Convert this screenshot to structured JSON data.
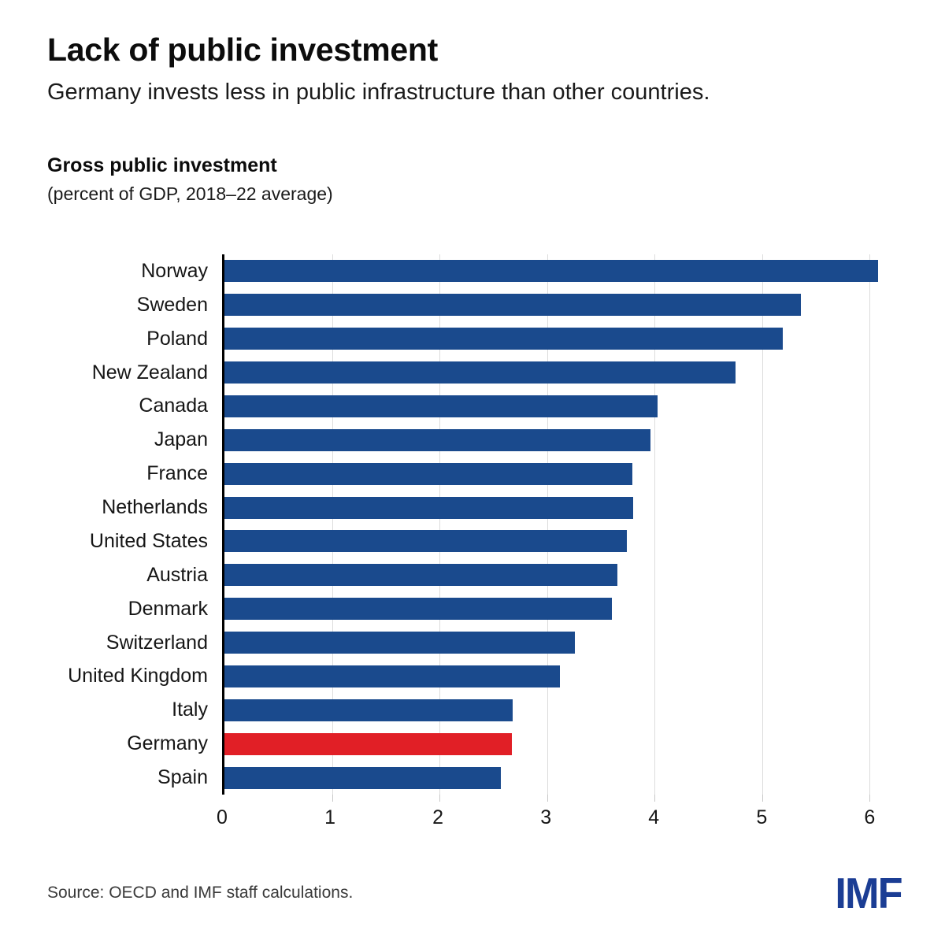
{
  "header": {
    "title": "Lack of public investment",
    "subtitle": "Germany invests less in public infrastructure than other countries."
  },
  "chart": {
    "heading": "Gross public investment",
    "subheading": "(percent of GDP, 2018–22 average)"
  },
  "chart_data": {
    "type": "bar",
    "orientation": "horizontal",
    "title": "Gross public investment",
    "subtitle": "(percent of GDP, 2018–22 average)",
    "categories": [
      "Norway",
      "Sweden",
      "Poland",
      "New Zealand",
      "Canada",
      "Japan",
      "France",
      "Netherlands",
      "United States",
      "Austria",
      "Denmark",
      "Switzerland",
      "United Kingdom",
      "Italy",
      "Germany",
      "Spain"
    ],
    "values": [
      6.08,
      5.36,
      5.19,
      4.75,
      4.03,
      3.96,
      3.79,
      3.8,
      3.74,
      3.65,
      3.6,
      3.26,
      3.12,
      2.68,
      2.67,
      2.57
    ],
    "highlight_category": "Germany",
    "x_ticks": [
      0,
      1,
      2,
      3,
      4,
      5,
      6
    ],
    "xlim": [
      0,
      6.26
    ],
    "grid": "vertical",
    "legend_position": "none",
    "colors": {
      "bar": "#1a4a8d",
      "highlight": "#e11f26",
      "gridline": "#dcdcdc",
      "axis": "#000000"
    }
  },
  "footer": {
    "source": "Source: OECD and IMF staff calculations.",
    "logo_text": "IMF",
    "logo_color": "#1b3d94"
  }
}
